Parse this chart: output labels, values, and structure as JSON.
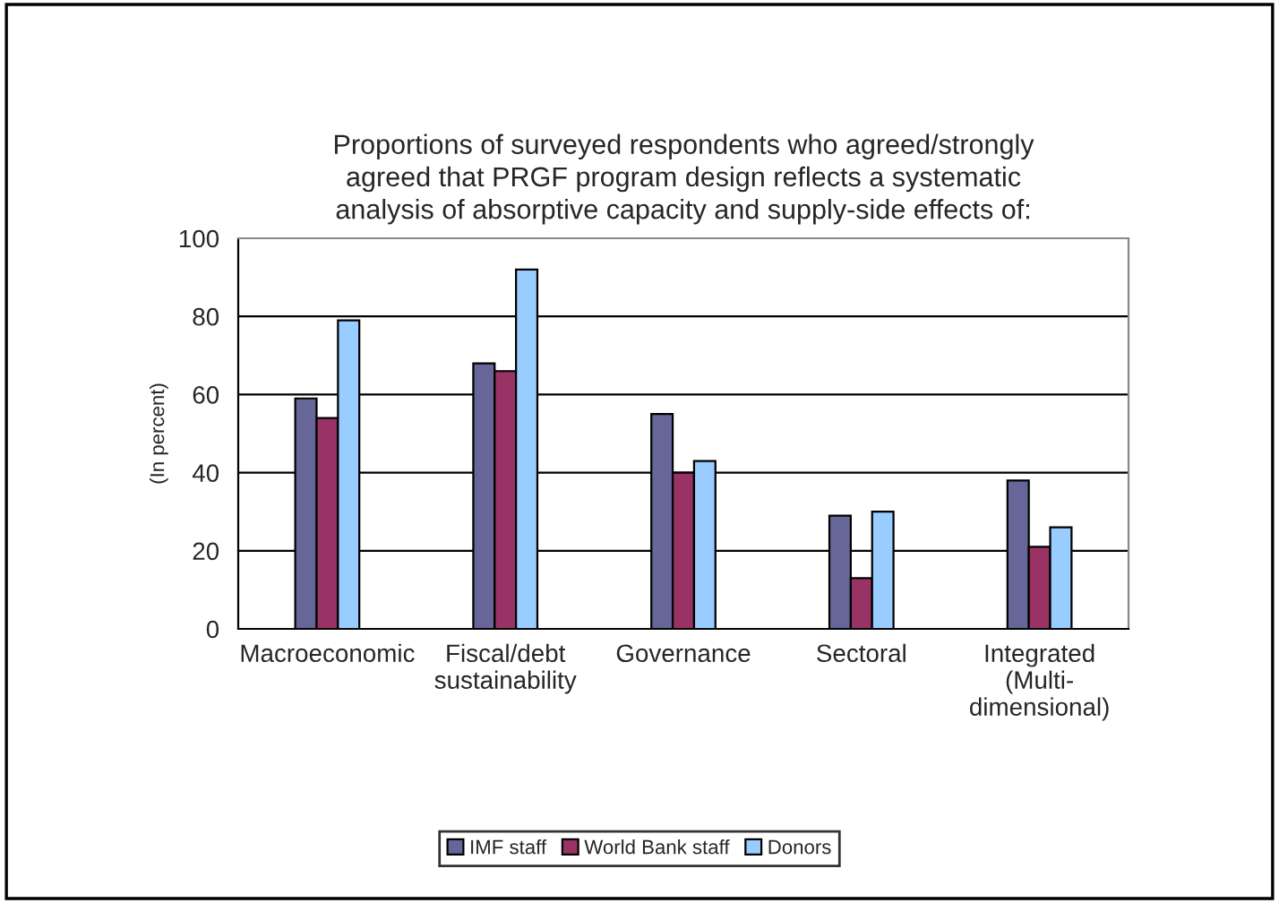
{
  "chart_data": {
    "type": "bar",
    "title": "Proportions of surveyed respondents who agreed/strongly\nagreed that PRGF program design reflects a systematic\nanalysis of absorptive capacity and supply-side effects of:",
    "ylabel": "(In percent)",
    "categories": [
      "Macroeconomic",
      "Fiscal/debt\nsustainability",
      "Governance",
      "Sectoral",
      "Integrated\n(Multi-\ndimensional)"
    ],
    "series": [
      {
        "name": "IMF staff",
        "color": "#666699",
        "values": [
          59,
          68,
          55,
          29,
          38
        ]
      },
      {
        "name": "World Bank staff",
        "color": "#993366",
        "values": [
          54,
          66,
          40,
          13,
          21
        ]
      },
      {
        "name": "Donors",
        "color": "#99ccff",
        "values": [
          79,
          92,
          43,
          30,
          26
        ]
      }
    ],
    "ylim": [
      0,
      100
    ],
    "yticks": [
      0,
      20,
      40,
      60,
      80,
      100
    ],
    "grid": "y",
    "legend": "bottom"
  }
}
